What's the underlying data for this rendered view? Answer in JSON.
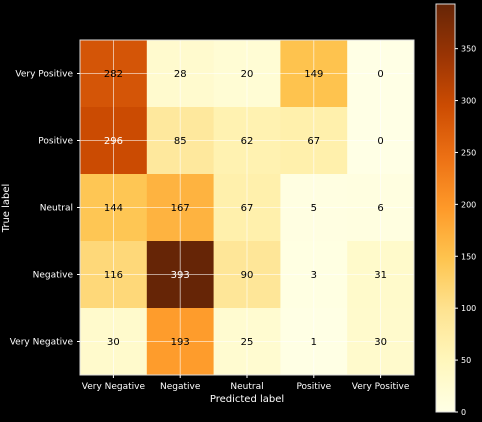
{
  "chart_data": {
    "type": "heatmap",
    "title": "",
    "xlabel": "Predicted label",
    "ylabel": "True label",
    "x_categories": [
      "Very Negative",
      "Negative",
      "Neutral",
      "Positive",
      "Very Positive"
    ],
    "y_categories": [
      "Very Positive",
      "Positive",
      "Neutral",
      "Negative",
      "Very Negative"
    ],
    "values": [
      [
        282,
        28,
        20,
        149,
        0
      ],
      [
        296,
        85,
        62,
        67,
        0
      ],
      [
        144,
        167,
        67,
        5,
        6
      ],
      [
        116,
        393,
        90,
        3,
        31
      ],
      [
        30,
        193,
        25,
        1,
        30
      ]
    ],
    "value_labels": [
      [
        "282",
        "28",
        "20",
        "149",
        "0"
      ],
      [
        "296",
        "85",
        "62",
        "67",
        "0"
      ],
      [
        "144",
        "167",
        "67",
        "5",
        "6"
      ],
      [
        "116",
        "393",
        "90",
        "3",
        "31"
      ],
      [
        "30",
        "193",
        "25",
        "1",
        "30"
      ]
    ],
    "colorbar": {
      "min": 0,
      "max": 393,
      "colormap": "YlOrBr",
      "ticks": [
        0,
        50,
        100,
        150,
        200,
        250,
        300,
        350
      ]
    },
    "grid": true,
    "background": "#000000",
    "text_color": "#ffffff"
  }
}
